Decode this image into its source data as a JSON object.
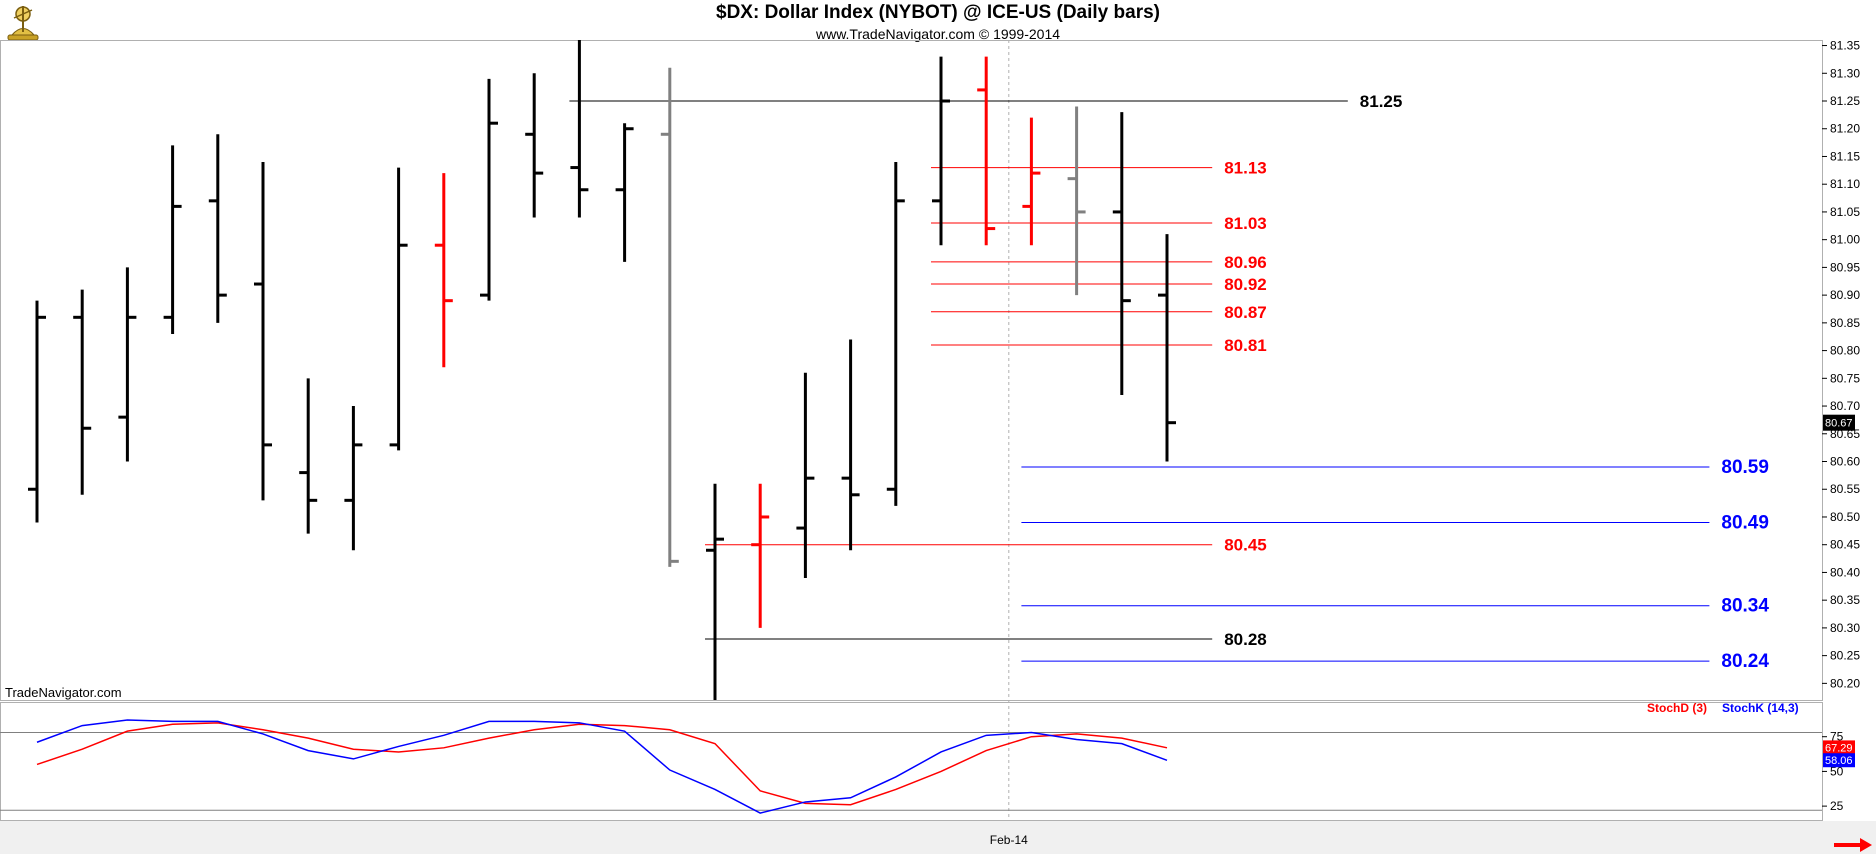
{
  "header": {
    "title": "$DX:  Dollar Index (NYBOT) @ ICE-US  (Daily bars)",
    "subtitle": "www.TradeNavigator.com © 1999-2014",
    "watermark": "TradeNavigator.com"
  },
  "colors": {
    "up": "#000000",
    "down": "#ff0000",
    "neutral": "#808080",
    "blue": "#0000ff",
    "grid": "#c8c8c8"
  },
  "chart_data": [
    {
      "type": "ohlc",
      "title": "$DX:  Dollar Index (NYBOT) @ ICE-US  (Daily bars)",
      "ylim": [
        80.17,
        81.36
      ],
      "yticks": [
        80.2,
        80.25,
        80.3,
        80.35,
        80.4,
        80.45,
        80.5,
        80.55,
        80.6,
        80.65,
        80.7,
        80.75,
        80.8,
        80.85,
        80.9,
        80.95,
        81.0,
        81.05,
        81.1,
        81.15,
        81.2,
        81.25,
        81.3,
        81.35
      ],
      "ytick_labels": [
        "80.20",
        "80.25",
        "80.30",
        "80.35",
        "80.40",
        "80.45",
        "80.50",
        "80.55",
        "80.60",
        "80.65",
        "80.70",
        "80.75",
        "80.80",
        "80.85",
        "80.90",
        "80.95",
        "81.00",
        "81.05",
        "81.10",
        "81.15",
        "81.20",
        "81.25",
        "81.30",
        "81.35"
      ],
      "x_tick": {
        "label": "Feb-14",
        "bar_index": 21.5
      },
      "last_price_label": "80.67",
      "bars": [
        {
          "o": 80.55,
          "h": 80.89,
          "l": 80.49,
          "c": 80.86,
          "color": "up"
        },
        {
          "o": 80.86,
          "h": 80.91,
          "l": 80.54,
          "c": 80.66,
          "color": "up"
        },
        {
          "o": 80.68,
          "h": 80.95,
          "l": 80.6,
          "c": 80.86,
          "color": "up"
        },
        {
          "o": 80.86,
          "h": 81.17,
          "l": 80.83,
          "c": 81.06,
          "color": "up"
        },
        {
          "o": 81.07,
          "h": 81.19,
          "l": 80.85,
          "c": 80.9,
          "color": "up"
        },
        {
          "o": 80.92,
          "h": 81.14,
          "l": 80.53,
          "c": 80.63,
          "color": "up"
        },
        {
          "o": 80.58,
          "h": 80.75,
          "l": 80.47,
          "c": 80.53,
          "color": "up"
        },
        {
          "o": 80.53,
          "h": 80.7,
          "l": 80.44,
          "c": 80.63,
          "color": "up"
        },
        {
          "o": 80.63,
          "h": 81.13,
          "l": 80.62,
          "c": 80.99,
          "color": "up"
        },
        {
          "o": 80.99,
          "h": 81.12,
          "l": 80.77,
          "c": 80.89,
          "color": "down"
        },
        {
          "o": 80.9,
          "h": 81.29,
          "l": 80.89,
          "c": 81.21,
          "color": "up"
        },
        {
          "o": 81.19,
          "h": 81.3,
          "l": 81.04,
          "c": 81.12,
          "color": "up"
        },
        {
          "o": 81.13,
          "h": 81.36,
          "l": 81.04,
          "c": 81.09,
          "color": "up"
        },
        {
          "o": 81.09,
          "h": 81.21,
          "l": 80.96,
          "c": 81.2,
          "color": "up"
        },
        {
          "o": 81.19,
          "h": 81.31,
          "l": 80.41,
          "c": 80.42,
          "color": "neutral"
        },
        {
          "o": 80.44,
          "h": 80.56,
          "l": 80.17,
          "c": 80.46,
          "color": "up"
        },
        {
          "o": 80.45,
          "h": 80.56,
          "l": 80.3,
          "c": 80.5,
          "color": "down"
        },
        {
          "o": 80.48,
          "h": 80.76,
          "l": 80.39,
          "c": 80.57,
          "color": "up"
        },
        {
          "o": 80.57,
          "h": 80.82,
          "l": 80.44,
          "c": 80.54,
          "color": "up"
        },
        {
          "o": 80.55,
          "h": 81.14,
          "l": 80.52,
          "c": 81.07,
          "color": "up"
        },
        {
          "o": 81.07,
          "h": 81.33,
          "l": 80.99,
          "c": 81.25,
          "color": "up"
        },
        {
          "o": 81.27,
          "h": 81.33,
          "l": 80.99,
          "c": 81.02,
          "color": "down"
        },
        {
          "o": 81.06,
          "h": 81.22,
          "l": 80.99,
          "c": 81.12,
          "color": "down"
        },
        {
          "o": 81.11,
          "h": 81.24,
          "l": 80.9,
          "c": 81.05,
          "color": "neutral"
        },
        {
          "o": 81.05,
          "h": 81.23,
          "l": 80.72,
          "c": 80.89,
          "color": "up"
        },
        {
          "o": 80.9,
          "h": 81.01,
          "l": 80.6,
          "c": 80.67,
          "color": "up"
        }
      ],
      "levels": [
        {
          "value": 81.25,
          "label": "81.25",
          "color": "up",
          "from_bar": 12.0,
          "to_bar": 29.0
        },
        {
          "value": 81.13,
          "label": "81.13",
          "color": "down",
          "from_bar": 20.0,
          "to_bar": 26.0
        },
        {
          "value": 81.03,
          "label": "81.03",
          "color": "down",
          "from_bar": 20.0,
          "to_bar": 26.0
        },
        {
          "value": 80.96,
          "label": "80.96",
          "color": "down",
          "from_bar": 20.0,
          "to_bar": 26.0
        },
        {
          "value": 80.92,
          "label": "80.92",
          "color": "down",
          "from_bar": 20.0,
          "to_bar": 26.0
        },
        {
          "value": 80.87,
          "label": "80.87",
          "color": "down",
          "from_bar": 20.0,
          "to_bar": 26.0
        },
        {
          "value": 80.81,
          "label": "80.81",
          "color": "down",
          "from_bar": 20.0,
          "to_bar": 26.0
        },
        {
          "value": 80.45,
          "label": "80.45",
          "color": "down",
          "from_bar": 15.0,
          "to_bar": 26.0
        },
        {
          "value": 80.28,
          "label": "80.28",
          "color": "up",
          "from_bar": 15.0,
          "to_bar": 26.0
        },
        {
          "value": 80.59,
          "label": "80.59",
          "color": "blue",
          "from_bar": 22.0,
          "to_bar": 37.0
        },
        {
          "value": 80.49,
          "label": "80.49",
          "color": "blue",
          "from_bar": 22.0,
          "to_bar": 37.0
        },
        {
          "value": 80.34,
          "label": "80.34",
          "color": "blue",
          "from_bar": 22.0,
          "to_bar": 37.0
        },
        {
          "value": 80.24,
          "label": "80.24",
          "color": "blue",
          "from_bar": 22.0,
          "to_bar": 37.0
        }
      ]
    },
    {
      "type": "line",
      "ylim": [
        15,
        100
      ],
      "yticks": [
        25,
        50,
        75
      ],
      "ytick_labels": [
        "25",
        "50",
        "75"
      ],
      "reference_lines": [
        78,
        22
      ],
      "legend": [
        {
          "name": "StochD (3)",
          "color": "down"
        },
        {
          "name": "StochK (14,3)",
          "color": "blue"
        }
      ],
      "last_values": [
        {
          "label": "67.29",
          "color": "down",
          "value": 67.29
        },
        {
          "label": "58.06",
          "color": "blue",
          "value": 58.06
        }
      ],
      "series": [
        {
          "name": "StochD (3)",
          "color": "down",
          "values": [
            55,
            66,
            79,
            84,
            85,
            80,
            74,
            66,
            64,
            67,
            74,
            80,
            84,
            83,
            80,
            70,
            36,
            27,
            26,
            37,
            50,
            65,
            75,
            77,
            74,
            67
          ]
        },
        {
          "name": "StochK (14,3)",
          "color": "blue",
          "values": [
            71,
            83,
            87,
            86,
            86,
            77,
            65,
            59,
            68,
            76,
            86,
            86,
            85,
            79,
            51,
            37,
            20,
            28,
            31,
            46,
            64,
            76,
            78,
            73,
            70,
            58
          ]
        }
      ]
    }
  ]
}
